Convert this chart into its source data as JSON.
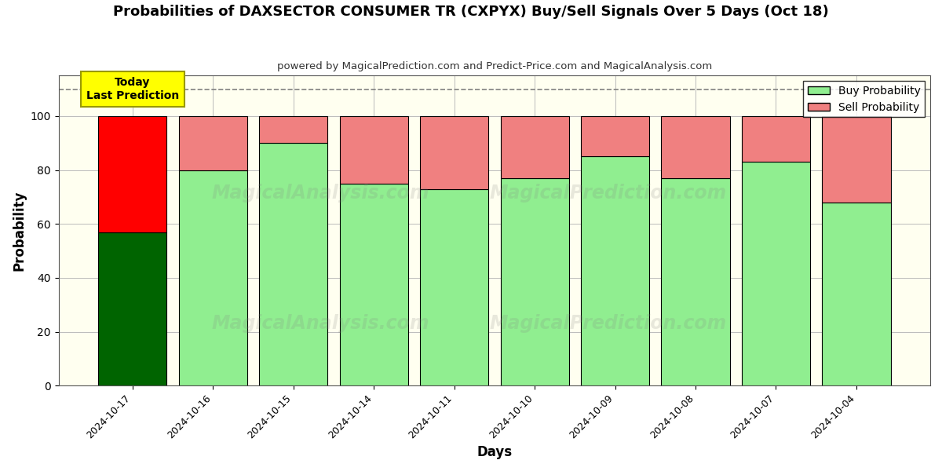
{
  "title": "Probabilities of DAXSECTOR CONSUMER TR (CXPYX) Buy/Sell Signals Over 5 Days (Oct 18)",
  "subtitle": "powered by MagicalPrediction.com and Predict-Price.com and MagicalAnalysis.com",
  "xlabel": "Days",
  "ylabel": "Probability",
  "dates": [
    "2024-10-17",
    "2024-10-16",
    "2024-10-15",
    "2024-10-14",
    "2024-10-11",
    "2024-10-10",
    "2024-10-09",
    "2024-10-08",
    "2024-10-07",
    "2024-10-04"
  ],
  "buy_values": [
    57,
    80,
    90,
    75,
    73,
    77,
    85,
    77,
    83,
    68
  ],
  "sell_values": [
    43,
    20,
    10,
    25,
    27,
    23,
    15,
    23,
    17,
    32
  ],
  "today_buy_color": "#006400",
  "today_sell_color": "#FF0000",
  "buy_color": "#90EE90",
  "sell_color": "#F08080",
  "today_label_bg": "#FFFF00",
  "dashed_line_y": 110,
  "ylim": [
    0,
    115
  ],
  "yticks": [
    0,
    20,
    40,
    60,
    80,
    100
  ],
  "plot_bg_color": "#fffff0",
  "background_color": "#ffffff",
  "grid_color": "#bbbbbb",
  "bar_width": 0.85,
  "edgecolor": "#000000",
  "watermark_color": "gray",
  "watermark_alpha": 0.18
}
